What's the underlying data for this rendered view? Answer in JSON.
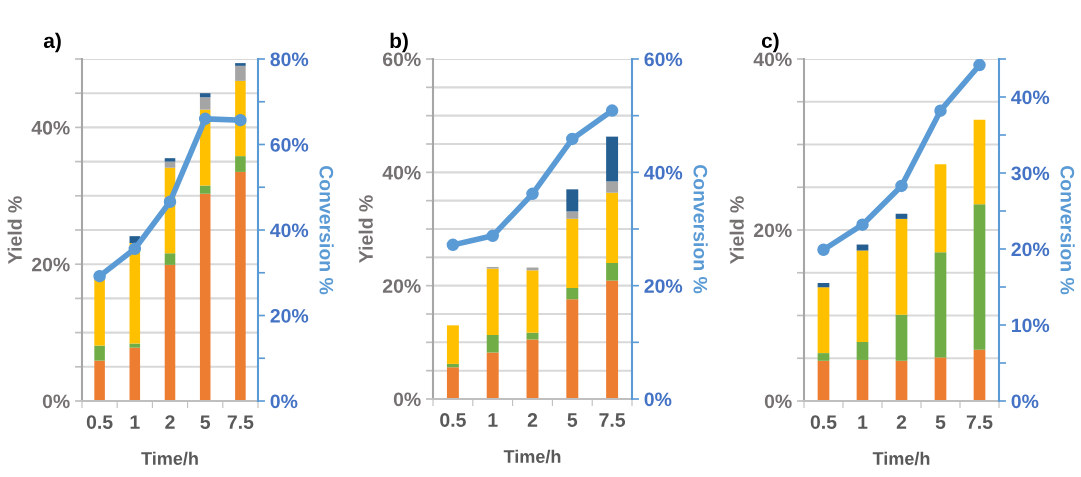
{
  "chart_data": [
    {
      "type": "bar",
      "title": "a)",
      "xlabel": "Time/h",
      "ylabel": "Yield %",
      "y2label": "Conversion %",
      "stacked": true,
      "grid": "y",
      "categories": [
        "0.5",
        "1",
        "2",
        "5",
        "7.5"
      ],
      "ylim": [
        0,
        50
      ],
      "yticks": [
        {
          "value": 0,
          "label": "0%"
        },
        {
          "value": 5,
          "label": null
        },
        {
          "value": 10,
          "label": null
        },
        {
          "value": 15,
          "label": null
        },
        {
          "value": 20,
          "label": "20%"
        },
        {
          "value": 25,
          "label": null
        },
        {
          "value": 30,
          "label": null
        },
        {
          "value": 35,
          "label": null
        },
        {
          "value": 40,
          "label": "40%"
        },
        {
          "value": 45,
          "label": null
        },
        {
          "value": 50,
          "label": null
        }
      ],
      "y2lim": [
        0,
        80
      ],
      "y2ticks": [
        {
          "value": 0,
          "label": "0%"
        },
        {
          "value": 10,
          "label": null
        },
        {
          "value": 20,
          "label": "20%"
        },
        {
          "value": 30,
          "label": null
        },
        {
          "value": 40,
          "label": "40%"
        },
        {
          "value": 50,
          "label": null
        },
        {
          "value": 60,
          "label": "60%"
        },
        {
          "value": 70,
          "label": null
        },
        {
          "value": 80,
          "label": "80%"
        }
      ],
      "series": [
        {
          "color": "#ed7d31",
          "values": [
            5.9,
            7.8,
            19.9,
            30.3,
            33.5
          ]
        },
        {
          "color": "#70ad47",
          "values": [
            2.2,
            0.6,
            1.7,
            1.2,
            2.3
          ]
        },
        {
          "color": "#ffc000",
          "values": [
            9.8,
            14.7,
            12.5,
            11.1,
            11.0
          ]
        },
        {
          "color": "#a5a5a5",
          "values": [
            0,
            0,
            0.9,
            1.8,
            2.2
          ]
        },
        {
          "color": "#255e91",
          "values": [
            0,
            1.0,
            0.5,
            0.6,
            0.4
          ]
        },
        {
          "type": "line",
          "axis": "y2",
          "marker": "circle",
          "line_style": "solid",
          "color": "#5b9bd5",
          "values": [
            29.2,
            35.6,
            46.6,
            66.0,
            65.7
          ]
        }
      ]
    },
    {
      "type": "bar",
      "title": "b)",
      "xlabel": "Time/h",
      "ylabel": "Yield %",
      "y2label": "Conversion %",
      "stacked": true,
      "grid": "y",
      "categories": [
        "0.5",
        "1",
        "2",
        "5",
        "7.5"
      ],
      "ylim": [
        0,
        60
      ],
      "yticks": [
        {
          "value": 0,
          "label": "0%"
        },
        {
          "value": 5,
          "label": null
        },
        {
          "value": 10,
          "label": null
        },
        {
          "value": 15,
          "label": null
        },
        {
          "value": 20,
          "label": "20%"
        },
        {
          "value": 25,
          "label": null
        },
        {
          "value": 30,
          "label": null
        },
        {
          "value": 35,
          "label": null
        },
        {
          "value": 40,
          "label": "40%"
        },
        {
          "value": 45,
          "label": null
        },
        {
          "value": 50,
          "label": null
        },
        {
          "value": 55,
          "label": null
        },
        {
          "value": 60,
          "label": "60%"
        }
      ],
      "y2lim": [
        0,
        60
      ],
      "y2ticks": [
        {
          "value": 0,
          "label": "0%"
        },
        {
          "value": 10,
          "label": null
        },
        {
          "value": 20,
          "label": "20%"
        },
        {
          "value": 30,
          "label": null
        },
        {
          "value": 40,
          "label": "40%"
        },
        {
          "value": 50,
          "label": null
        },
        {
          "value": 60,
          "label": "60%"
        }
      ],
      "series": [
        {
          "color": "#ed7d31",
          "values": [
            5.6,
            8.2,
            10.5,
            17.6,
            20.9
          ]
        },
        {
          "color": "#70ad47",
          "values": [
            0.6,
            3.1,
            1.2,
            2.0,
            3.1
          ]
        },
        {
          "color": "#ffc000",
          "values": [
            6.8,
            11.7,
            11.0,
            12.2,
            12.4
          ]
        },
        {
          "color": "#a5a5a5",
          "values": [
            0,
            0.3,
            0.5,
            1.3,
            2.0
          ]
        },
        {
          "color": "#255e91",
          "values": [
            0,
            0,
            0,
            3.9,
            7.9
          ]
        },
        {
          "type": "line",
          "axis": "y2",
          "marker": "circle",
          "line_style": "solid",
          "color": "#5b9bd5",
          "values": [
            27.2,
            28.8,
            36.2,
            45.9,
            50.9
          ]
        }
      ]
    },
    {
      "type": "bar",
      "title": "c)",
      "xlabel": "Time/h",
      "ylabel": "Yield %",
      "y2label": "Conversion %",
      "stacked": true,
      "grid": "y",
      "categories": [
        "0.5",
        "1",
        "2",
        "5",
        "7.5"
      ],
      "ylim": [
        0,
        40
      ],
      "yticks": [
        {
          "value": 0,
          "label": "0%"
        },
        {
          "value": 5,
          "label": null
        },
        {
          "value": 10,
          "label": null
        },
        {
          "value": 15,
          "label": null
        },
        {
          "value": 20,
          "label": "20%"
        },
        {
          "value": 25,
          "label": null
        },
        {
          "value": 30,
          "label": null
        },
        {
          "value": 35,
          "label": null
        },
        {
          "value": 40,
          "label": "40%"
        }
      ],
      "y2lim": [
        0,
        45
      ],
      "y2ticks": [
        {
          "value": 0,
          "label": "0%"
        },
        {
          "value": 5,
          "label": null
        },
        {
          "value": 10,
          "label": "10%"
        },
        {
          "value": 15,
          "label": null
        },
        {
          "value": 20,
          "label": "20%"
        },
        {
          "value": 25,
          "label": null
        },
        {
          "value": 30,
          "label": "30%"
        },
        {
          "value": 35,
          "label": null
        },
        {
          "value": 40,
          "label": "40%"
        },
        {
          "value": 45,
          "label": null
        }
      ],
      "series": [
        {
          "color": "#ed7d31",
          "values": [
            4.7,
            4.8,
            4.7,
            5.1,
            6.0
          ]
        },
        {
          "color": "#70ad47",
          "values": [
            0.9,
            2.1,
            5.4,
            12.3,
            17.0
          ]
        },
        {
          "color": "#ffc000",
          "values": [
            7.7,
            10.7,
            11.2,
            10.3,
            9.9
          ]
        },
        {
          "color": "#255e91",
          "values": [
            0.5,
            0.7,
            0.6,
            0,
            0
          ]
        },
        {
          "type": "line",
          "axis": "y2",
          "marker": "circle",
          "line_style": "solid",
          "color": "#5b9bd5",
          "values": [
            19.9,
            23.2,
            28.3,
            38.2,
            44.2
          ]
        }
      ]
    }
  ]
}
